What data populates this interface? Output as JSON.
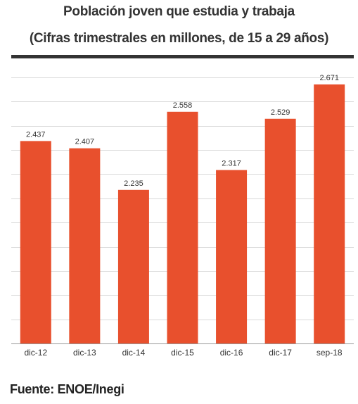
{
  "header": {
    "title": "Población joven que estudia y trabaja",
    "subtitle": "(Cifras trimestrales en millones, de 15 a 29 años)"
  },
  "footer": {
    "source": "Fuente: ENOE/Inegi"
  },
  "colors": {
    "bar": "#e8502d",
    "grid": "#d9d9d9",
    "axis": "#999999",
    "text": "#333333"
  },
  "chart_data": {
    "type": "bar",
    "title": "Población joven que estudia y trabaja",
    "subtitle": "(Cifras trimestrales en millones, de 15 a 29 años)",
    "categories": [
      "dic-12",
      "dic-13",
      "dic-14",
      "dic-15",
      "dic-16",
      "dic-17",
      "sep-18"
    ],
    "values": [
      2.437,
      2.407,
      2.235,
      2.558,
      2.317,
      2.529,
      2.671
    ],
    "value_labels": [
      "2.437",
      "2.407",
      "2.235",
      "2.558",
      "2.317",
      "2.529",
      "2.671"
    ],
    "ylim": [
      1.6,
      2.7
    ],
    "grid": true,
    "y_tick_labels_shown": false,
    "legend": "none"
  }
}
